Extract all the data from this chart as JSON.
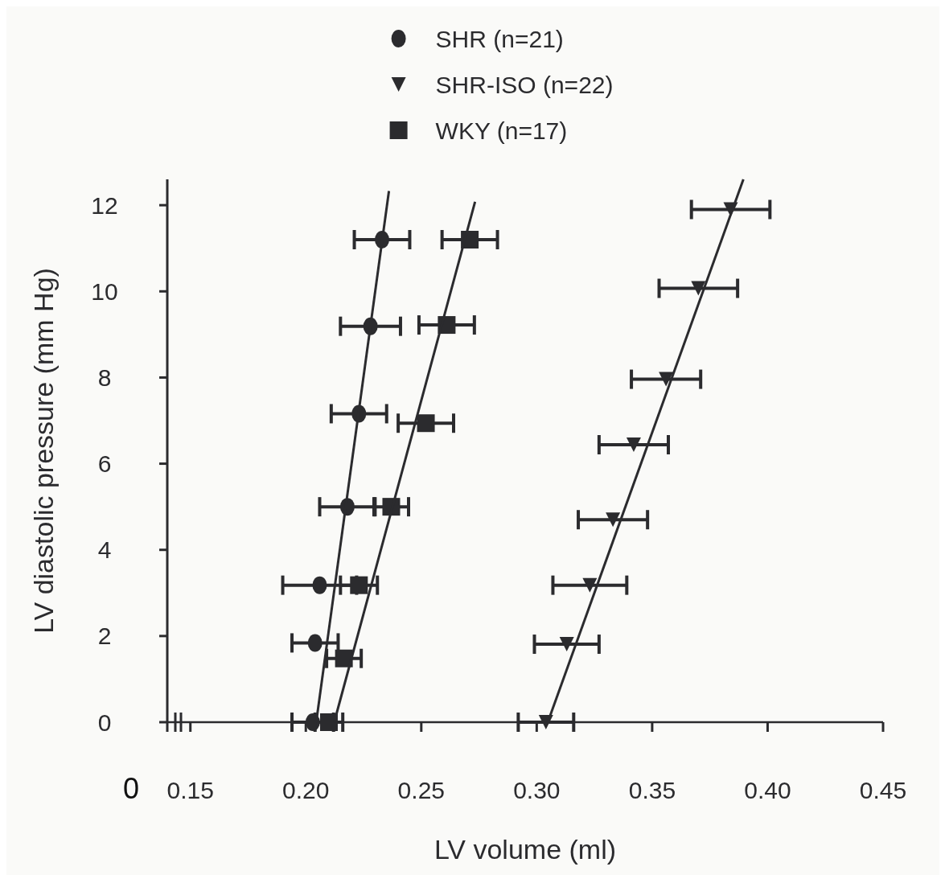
{
  "chart_data": {
    "type": "scatter",
    "xlabel": "LV volume (ml)",
    "ylabel": "LV diastolic pressure (mm Hg)",
    "annotations": [
      "0"
    ],
    "xlim": [
      0.14,
      0.45
    ],
    "xticks": [
      {
        "value": 0.15,
        "label": "0.15"
      },
      {
        "value": 0.2,
        "label": "0.20"
      },
      {
        "value": 0.25,
        "label": "0.25"
      },
      {
        "value": 0.3,
        "label": "0.30"
      },
      {
        "value": 0.35,
        "label": "0.35"
      },
      {
        "value": 0.4,
        "label": "0.40"
      },
      {
        "value": 0.45,
        "label": "0.45"
      }
    ],
    "ylim": [
      0,
      12.6
    ],
    "yticks": [
      0,
      2,
      4,
      6,
      8,
      10,
      12
    ],
    "legend": "top",
    "grid": false,
    "series": [
      {
        "name": "SHR (n=21)",
        "color": "#2b2b2e",
        "marker": "circle",
        "x": [
          0.203,
          0.204,
          0.206,
          0.218,
          0.223,
          0.228,
          0.233
        ],
        "values": [
          0,
          1.84,
          3.18,
          5.0,
          7.16,
          9.19,
          11.2
        ],
        "xerrors": [
          0.009,
          0.01,
          0.016,
          0.012,
          0.012,
          0.013,
          0.012
        ]
      },
      {
        "name": "SHR-ISO (n=22)",
        "color": "#2b2b2e",
        "marker": "triangle-down",
        "x": [
          0.304,
          0.313,
          0.323,
          0.333,
          0.342,
          0.356,
          0.37,
          0.384
        ],
        "values": [
          0,
          1.81,
          3.18,
          4.7,
          6.44,
          7.96,
          10.07,
          11.9
        ],
        "xerrors": [
          0.012,
          0.014,
          0.016,
          0.015,
          0.015,
          0.015,
          0.017,
          0.017
        ]
      },
      {
        "name": "WKY (n=17)",
        "color": "#2b2b2e",
        "marker": "square",
        "x": [
          0.21,
          0.2165,
          0.223,
          0.237,
          0.252,
          0.261,
          0.271
        ],
        "values": [
          0,
          1.48,
          3.18,
          5.0,
          6.94,
          9.22,
          11.2
        ],
        "xerrors": [
          0.006,
          0.0075,
          0.008,
          0.0075,
          0.012,
          0.012,
          0.012
        ]
      },
      {
        "type": "line",
        "color": "#2b2b2e",
        "x": [
          0.2045,
          0.236
        ],
        "values": [
          0,
          12.33
        ]
      },
      {
        "type": "line",
        "color": "#2b2b2e",
        "x": [
          0.2123,
          0.2733
        ],
        "values": [
          0,
          12.08
        ]
      },
      {
        "type": "line",
        "color": "#2b2b2e",
        "x": [
          0.3048,
          0.3895
        ],
        "values": [
          0,
          12.6
        ]
      }
    ]
  }
}
